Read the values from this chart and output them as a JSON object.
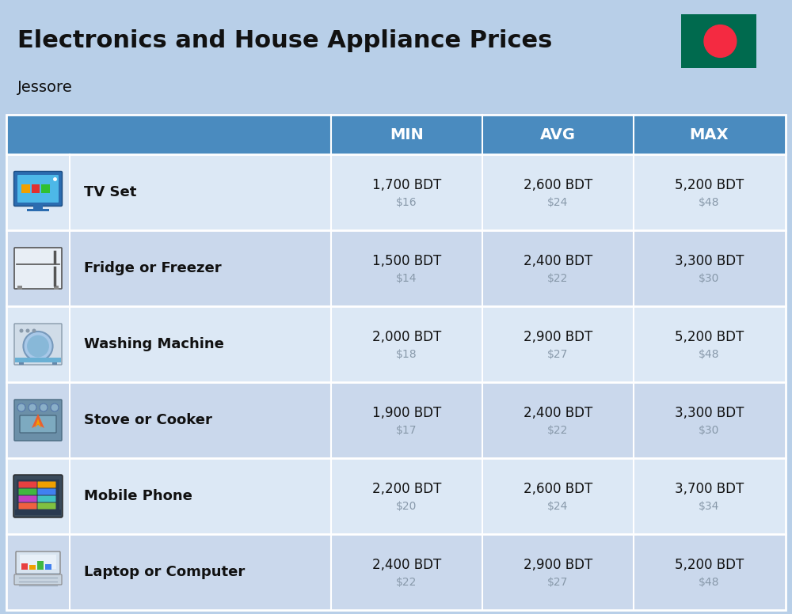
{
  "title": "Electronics and House Appliance Prices",
  "subtitle": "Jessore",
  "background_color": "#b8cfe8",
  "header_color": "#4a8bbf",
  "header_text_color": "#ffffff",
  "items": [
    {
      "name": "TV Set",
      "min_bdt": "1,700 BDT",
      "min_usd": "$16",
      "avg_bdt": "2,600 BDT",
      "avg_usd": "$24",
      "max_bdt": "5,200 BDT",
      "max_usd": "$48"
    },
    {
      "name": "Fridge or Freezer",
      "min_bdt": "1,500 BDT",
      "min_usd": "$14",
      "avg_bdt": "2,400 BDT",
      "avg_usd": "$22",
      "max_bdt": "3,300 BDT",
      "max_usd": "$30"
    },
    {
      "name": "Washing Machine",
      "min_bdt": "2,000 BDT",
      "min_usd": "$18",
      "avg_bdt": "2,900 BDT",
      "avg_usd": "$27",
      "max_bdt": "5,200 BDT",
      "max_usd": "$48"
    },
    {
      "name": "Stove or Cooker",
      "min_bdt": "1,900 BDT",
      "min_usd": "$17",
      "avg_bdt": "2,400 BDT",
      "avg_usd": "$22",
      "max_bdt": "3,300 BDT",
      "max_usd": "$30"
    },
    {
      "name": "Mobile Phone",
      "min_bdt": "2,200 BDT",
      "min_usd": "$20",
      "avg_bdt": "2,600 BDT",
      "avg_usd": "$24",
      "max_bdt": "3,700 BDT",
      "max_usd": "$34"
    },
    {
      "name": "Laptop or Computer",
      "min_bdt": "2,400 BDT",
      "min_usd": "$22",
      "avg_bdt": "2,900 BDT",
      "avg_usd": "$27",
      "max_bdt": "5,200 BDT",
      "max_usd": "$48"
    }
  ],
  "text_color_main": "#111111",
  "text_color_usd": "#8899aa",
  "col_header_fontsize": 14,
  "item_name_fontsize": 13,
  "value_fontsize": 12,
  "usd_fontsize": 10,
  "title_fontsize": 22,
  "subtitle_fontsize": 14
}
